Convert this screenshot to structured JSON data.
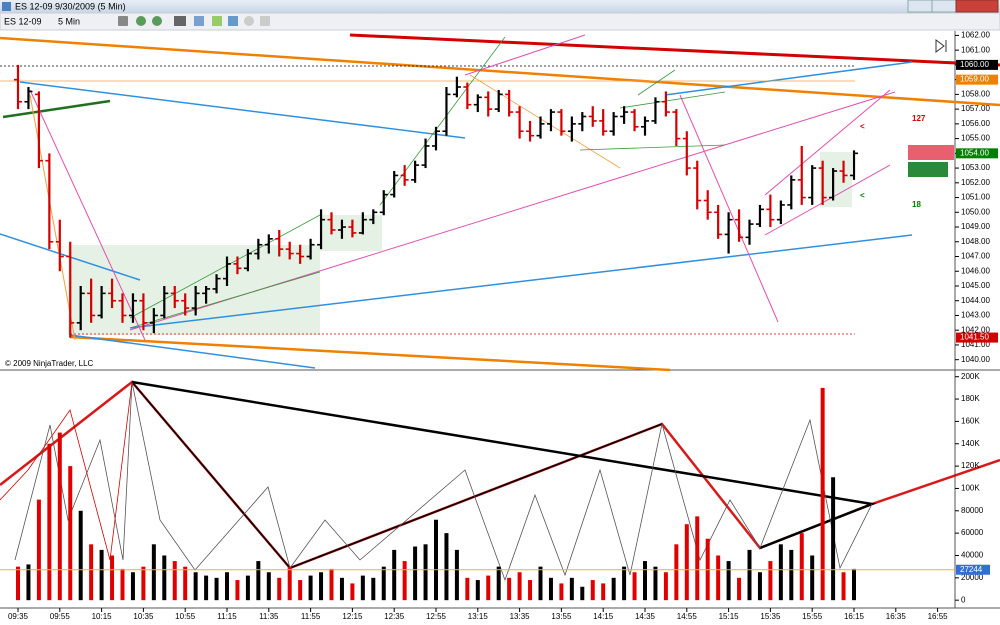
{
  "window": {
    "title": "ES 12-09  9/30/2009 (5 Min)",
    "symbol": "ES 12-09",
    "interval": "5 Min"
  },
  "chart_data": [
    {
      "type": "ohlc",
      "watermark": "© 2009 NinjaTrader, LLC",
      "up_color": "#000000",
      "down_color": "#d40000",
      "x": [
        "09:35",
        "09:40",
        "09:45",
        "09:50",
        "09:55",
        "10:00",
        "10:05",
        "10:10",
        "10:15",
        "10:20",
        "10:25",
        "10:30",
        "10:35",
        "10:40",
        "10:45",
        "10:50",
        "10:55",
        "11:00",
        "11:05",
        "11:10",
        "11:15",
        "11:20",
        "11:25",
        "11:30",
        "11:35",
        "11:40",
        "11:45",
        "11:50",
        "11:55",
        "12:00",
        "12:05",
        "12:10",
        "12:15",
        "12:20",
        "12:25",
        "12:30",
        "12:35",
        "12:40",
        "12:45",
        "12:50",
        "12:55",
        "13:00",
        "13:05",
        "13:10",
        "13:15",
        "13:20",
        "13:25",
        "13:30",
        "13:35",
        "13:40",
        "13:45",
        "13:50",
        "13:55",
        "14:00",
        "14:05",
        "14:10",
        "14:15",
        "14:20",
        "14:25",
        "14:30",
        "14:35",
        "14:40",
        "14:45",
        "14:50",
        "14:55",
        "15:00",
        "15:05",
        "15:10",
        "15:15",
        "15:20",
        "15:25",
        "15:30",
        "15:35",
        "15:40",
        "15:45",
        "15:50",
        "15:55",
        "16:00",
        "16:05",
        "16:10",
        "16:15"
      ],
      "open": [
        1059,
        1057.5,
        1058,
        1053.5,
        1048,
        1047,
        1042.5,
        1044.5,
        1043,
        1044.5,
        1044,
        1043,
        1044,
        1042.5,
        1043,
        1044.5,
        1044,
        1043.5,
        1044.5,
        1044.8,
        1045.5,
        1046.5,
        1046.2,
        1047.2,
        1047.8,
        1048.2,
        1047.5,
        1047.2,
        1047,
        1047.8,
        1049.5,
        1048.8,
        1049,
        1048.6,
        1049.5,
        1050,
        1051.2,
        1052.5,
        1052.2,
        1053.2,
        1054.5,
        1055.5,
        1058,
        1058.5,
        1057.3,
        1057.8,
        1057,
        1058,
        1056.8,
        1055.5,
        1055.2,
        1056,
        1056.8,
        1055.5,
        1056,
        1056.5,
        1056.2,
        1055.5,
        1056.5,
        1056.8,
        1055.8,
        1056.2,
        1057.5,
        1056.8,
        1055,
        1053,
        1050.8,
        1050,
        1048.5,
        1049.5,
        1048.3,
        1049.2,
        1050.2,
        1049.5,
        1050.5,
        1052.2,
        1051,
        1053,
        1051,
        1052.8,
        1052.5
      ],
      "high": [
        1060,
        1058.5,
        1058.2,
        1054,
        1049.5,
        1048,
        1045,
        1045.5,
        1045,
        1045.5,
        1044.5,
        1044.5,
        1044.5,
        1043.5,
        1045,
        1045,
        1044.5,
        1045,
        1045,
        1045.8,
        1047,
        1047,
        1047.5,
        1048.2,
        1048.5,
        1048.8,
        1048,
        1047.8,
        1048.2,
        1050.2,
        1050,
        1049.5,
        1049.5,
        1050,
        1050.2,
        1051.5,
        1052.8,
        1053.2,
        1053.5,
        1055,
        1055.8,
        1058.5,
        1059.2,
        1058.8,
        1058,
        1058.2,
        1058.3,
        1058.3,
        1057.2,
        1056.2,
        1056.5,
        1057,
        1057,
        1056.5,
        1056.8,
        1057.2,
        1057,
        1056.8,
        1057.2,
        1057,
        1056.5,
        1057.8,
        1058.2,
        1057,
        1055.5,
        1053.5,
        1051.5,
        1050.5,
        1050,
        1050.2,
        1049.5,
        1050.5,
        1051.2,
        1050.8,
        1052.5,
        1054.5,
        1053.2,
        1053.5,
        1053,
        1053.5,
        1054.2
      ],
      "low": [
        1057,
        1057,
        1053,
        1047.5,
        1046,
        1041.5,
        1042,
        1042.5,
        1042.8,
        1043.5,
        1042.5,
        1042.5,
        1042,
        1041.8,
        1042.8,
        1043.5,
        1043,
        1043,
        1043.8,
        1044.5,
        1045,
        1045.8,
        1046,
        1046.8,
        1047.2,
        1047,
        1046.8,
        1046.5,
        1046.8,
        1047.5,
        1048.5,
        1048.2,
        1048.3,
        1048.5,
        1049.2,
        1049.8,
        1051,
        1051.8,
        1052,
        1053,
        1054.2,
        1055.2,
        1057.8,
        1057,
        1056.8,
        1056.5,
        1056.8,
        1056.5,
        1055,
        1054.8,
        1055,
        1055.5,
        1055.2,
        1054.8,
        1055.5,
        1055.8,
        1055.2,
        1055.2,
        1056,
        1055.5,
        1055.2,
        1056,
        1056.5,
        1054.5,
        1052.5,
        1050.2,
        1049.5,
        1048.2,
        1047.2,
        1048,
        1047.8,
        1049,
        1049,
        1049.2,
        1050.2,
        1050.5,
        1050.5,
        1050.5,
        1050.8,
        1052,
        1052.2
      ],
      "close": [
        1057.5,
        1058.2,
        1053.5,
        1048,
        1047,
        1042.5,
        1044.5,
        1043,
        1044.5,
        1044,
        1043,
        1044,
        1042.5,
        1043,
        1044.5,
        1044,
        1043.5,
        1044.5,
        1044.8,
        1045.5,
        1046.5,
        1046.2,
        1047.2,
        1047.8,
        1048.2,
        1047.5,
        1047.2,
        1047,
        1047.8,
        1049.5,
        1048.8,
        1049,
        1048.6,
        1049.5,
        1050,
        1051.2,
        1052.5,
        1052.2,
        1053.2,
        1054.5,
        1055.5,
        1058,
        1058.5,
        1057.3,
        1057.8,
        1057,
        1058,
        1056.8,
        1055.5,
        1055.2,
        1056,
        1056.8,
        1055.5,
        1056,
        1056.5,
        1056.2,
        1055.5,
        1056.5,
        1056.8,
        1055.8,
        1056.2,
        1057.5,
        1056.8,
        1055,
        1053,
        1050.8,
        1050,
        1048.5,
        1049.5,
        1048.3,
        1049.2,
        1050.2,
        1049.5,
        1050.5,
        1052.2,
        1051,
        1053,
        1051,
        1052.8,
        1052.5,
        1054
      ],
      "ylim": [
        1039.3,
        1062.3
      ],
      "yticks": [
        {
          "value": 1040,
          "label": "1040.00"
        },
        {
          "value": 1041,
          "label": "1041.00"
        },
        {
          "value": 1042,
          "label": "1042.00"
        },
        {
          "value": 1043,
          "label": "1043.00"
        },
        {
          "value": 1044,
          "label": "1044.00"
        },
        {
          "value": 1045,
          "label": "1045.00"
        },
        {
          "value": 1046,
          "label": "1046.00"
        },
        {
          "value": 1047,
          "label": "1047.00"
        },
        {
          "value": 1048,
          "label": "1048.00"
        },
        {
          "value": 1049,
          "label": "1049.00"
        },
        {
          "value": 1050,
          "label": "1050.00"
        },
        {
          "value": 1051,
          "label": "1051.00"
        },
        {
          "value": 1052,
          "label": "1052.00"
        },
        {
          "value": 1053,
          "label": "1053.00"
        },
        {
          "value": 1054,
          "label": "1054.00"
        },
        {
          "value": 1055,
          "label": "1055.00"
        },
        {
          "value": 1056,
          "label": "1056.00"
        },
        {
          "value": 1057,
          "label": "1057.00"
        },
        {
          "value": 1058,
          "label": "1058.00"
        },
        {
          "value": 1059,
          "label": "1059.00"
        },
        {
          "value": 1060,
          "label": "1060.00"
        },
        {
          "value": 1061,
          "label": "1061.00"
        },
        {
          "value": 1062,
          "label": "1062.00"
        }
      ],
      "price_tags": [
        {
          "value": 1060,
          "label": "1060.00",
          "color": "#000000"
        },
        {
          "value": 1059,
          "label": "1059.00",
          "color": "#f08000"
        },
        {
          "value": 1054,
          "label": "1054.00",
          "color": "#008000"
        },
        {
          "value": 1041.5,
          "label": "1041.50",
          "color": "#d40000"
        }
      ],
      "annotations": [
        {
          "text": "127",
          "color": "#d40000"
        },
        {
          "text": "18",
          "color": "#008000"
        }
      ]
    },
    {
      "type": "volume",
      "up_color": "#000000",
      "down_color": "#e00000",
      "values": [
        30000,
        32000,
        90000,
        140000,
        150000,
        120000,
        80000,
        50000,
        45000,
        40000,
        28000,
        25000,
        30000,
        50000,
        40000,
        35000,
        30000,
        25000,
        22000,
        20000,
        25000,
        18000,
        22000,
        35000,
        25000,
        20000,
        30000,
        18000,
        22000,
        25000,
        28000,
        20000,
        15000,
        22000,
        20000,
        30000,
        45000,
        35000,
        48000,
        50000,
        72000,
        60000,
        45000,
        20000,
        18000,
        22000,
        30000,
        20000,
        25000,
        18000,
        30000,
        20000,
        15000,
        20000,
        12000,
        18000,
        15000,
        20000,
        30000,
        25000,
        35000,
        30000,
        25000,
        50000,
        68000,
        75000,
        55000,
        40000,
        35000,
        20000,
        45000,
        25000,
        35000,
        50000,
        45000,
        60000,
        40000,
        190000,
        110000,
        25000,
        28000
      ],
      "last_value": 27244,
      "ylim": [
        -7000,
        206000
      ],
      "yticks": [
        0,
        20000,
        40000,
        60000,
        80000,
        {
          "value": 100000,
          "label": "100K"
        },
        {
          "value": 120000,
          "label": "120K"
        },
        {
          "value": 140000,
          "label": "140K"
        },
        {
          "value": 160000,
          "label": "160K"
        },
        {
          "value": 180000,
          "label": "180K"
        },
        {
          "value": 200000,
          "label": "200K"
        }
      ],
      "xticks": [
        "09:35",
        "09:55",
        "10:15",
        "10:35",
        "10:55",
        "11:15",
        "11:35",
        "11:55",
        "12:15",
        "12:35",
        "12:55",
        "13:15",
        "13:35",
        "13:55",
        "14:15",
        "14:35",
        "14:55",
        "15:15",
        "15:35",
        "15:55",
        "16:15",
        "16:35",
        "16:55"
      ]
    }
  ]
}
